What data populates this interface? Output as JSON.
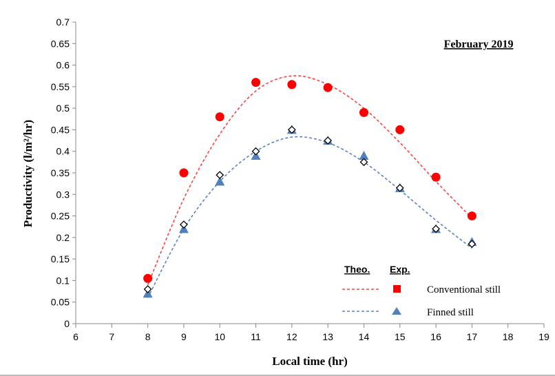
{
  "chart_data": {
    "type": "scatter",
    "title": "February 2019",
    "xlabel": "Local time (hr)",
    "ylabel": "Productivity (l/m²/hr)",
    "xlim": [
      6,
      19
    ],
    "ylim": [
      0,
      0.7
    ],
    "xticks": [
      6,
      7,
      8,
      9,
      10,
      11,
      12,
      13,
      14,
      15,
      16,
      17,
      18,
      19
    ],
    "yticks": [
      0,
      0.05,
      0.1,
      0.15,
      0.2,
      0.25,
      0.3,
      0.35,
      0.4,
      0.45,
      0.5,
      0.55,
      0.6,
      0.65,
      0.7
    ],
    "grid": false,
    "legend_placement": "bottom-right",
    "legend": {
      "theo_header": "Theo.",
      "exp_header": "Exp.",
      "entries": [
        "Conventional still",
        "Finned still"
      ]
    },
    "x": [
      8,
      9,
      10,
      11,
      12,
      13,
      14,
      15,
      16,
      17
    ],
    "series": [
      {
        "name": "Conventional still",
        "kind": "experimental",
        "marker": "circle",
        "color": "#ff0000",
        "values": [
          0.105,
          0.35,
          0.48,
          0.56,
          0.555,
          0.548,
          0.49,
          0.45,
          0.34,
          0.25
        ]
      },
      {
        "name": "Finned still",
        "kind": "experimental",
        "marker": "triangle",
        "color": "#4f81bd",
        "values": [
          0.07,
          0.22,
          0.33,
          0.39,
          0.45,
          0.425,
          0.39,
          0.315,
          0.22,
          0.19
        ]
      },
      {
        "kind": "experimental",
        "marker": "open-diamond",
        "color": "#000000",
        "values": [
          0.08,
          0.23,
          0.345,
          0.4,
          0.45,
          0.425,
          0.375,
          0.315,
          0.22,
          0.185
        ]
      },
      {
        "name": "Conventional still",
        "kind": "theoretical",
        "line": "dashed",
        "color": "#ff4040",
        "values": [
          0.09,
          0.29,
          0.44,
          0.54,
          0.575,
          0.555,
          0.5,
          0.42,
          0.33,
          0.245
        ]
      },
      {
        "name": "Finned still",
        "kind": "theoretical",
        "line": "dashed",
        "color": "#5b82c0",
        "values": [
          0.06,
          0.22,
          0.33,
          0.4,
          0.433,
          0.42,
          0.375,
          0.31,
          0.24,
          0.175
        ]
      }
    ]
  }
}
